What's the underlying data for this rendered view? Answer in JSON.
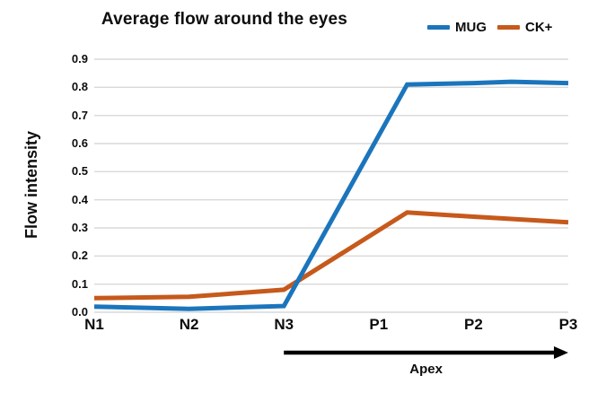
{
  "title": "Average flow around the eyes",
  "chart_data": {
    "type": "line",
    "title": "Average flow around the eyes",
    "xlabel": "",
    "ylabel": "Flow intensity",
    "categories": [
      "N1",
      "N2",
      "N3",
      "P1",
      "P2",
      "P3"
    ],
    "y_ticks": [
      "0.0",
      "0.1",
      "0.2",
      "0.3",
      "0.4",
      "0.5",
      "0.6",
      "0.7",
      "0.8",
      "0.9"
    ],
    "ylim": [
      0,
      0.9
    ],
    "grid": "horizontal-only",
    "gridline_color": "#D9D9D9",
    "legend_position": "top-right",
    "series": [
      {
        "name": "MUG",
        "color": "#1B75BC",
        "points": [
          {
            "x": 0,
            "y": 0.02
          },
          {
            "x": 1,
            "y": 0.012
          },
          {
            "x": 2,
            "y": 0.022
          },
          {
            "x": 3.3,
            "y": 0.81
          },
          {
            "x": 4,
            "y": 0.815
          },
          {
            "x": 4.4,
            "y": 0.82
          },
          {
            "x": 5,
            "y": 0.815
          }
        ]
      },
      {
        "name": "CK+",
        "color": "#C6591B",
        "points": [
          {
            "x": 0,
            "y": 0.05
          },
          {
            "x": 1,
            "y": 0.055
          },
          {
            "x": 2,
            "y": 0.08
          },
          {
            "x": 3.3,
            "y": 0.355
          },
          {
            "x": 4,
            "y": 0.34
          },
          {
            "x": 5,
            "y": 0.32
          }
        ]
      }
    ],
    "annotations": {
      "arrow": {
        "label": "Apex",
        "from_category": "N3",
        "to_category": "P3",
        "color": "#000000"
      }
    }
  },
  "legend": {
    "items": [
      {
        "label": "MUG"
      },
      {
        "label": "CK+"
      }
    ]
  }
}
